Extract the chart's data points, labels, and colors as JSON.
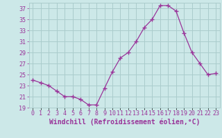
{
  "x": [
    0,
    1,
    2,
    3,
    4,
    5,
    6,
    7,
    8,
    9,
    10,
    11,
    12,
    13,
    14,
    15,
    16,
    17,
    18,
    19,
    20,
    21,
    22,
    23
  ],
  "y": [
    24.0,
    23.5,
    23.0,
    22.0,
    21.0,
    21.0,
    20.5,
    19.5,
    19.5,
    22.5,
    25.5,
    28.0,
    29.0,
    31.0,
    33.5,
    35.0,
    37.5,
    37.5,
    36.5,
    32.5,
    29.0,
    27.0,
    25.0,
    25.2
  ],
  "line_color": "#993399",
  "marker": "+",
  "marker_size": 4,
  "bg_color": "#cce8e8",
  "grid_color": "#aacccc",
  "xlabel": "Windchill (Refroidissement éolien,°C)",
  "xlabel_color": "#993399",
  "xlabel_fontsize": 7,
  "tick_color": "#993399",
  "tick_fontsize": 6,
  "ylim": [
    19,
    38
  ],
  "xlim": [
    -0.5,
    23.5
  ],
  "yticks": [
    19,
    21,
    23,
    25,
    27,
    29,
    31,
    33,
    35,
    37
  ],
  "xtick_labels": [
    "0",
    "1",
    "2",
    "3",
    "4",
    "5",
    "6",
    "7",
    "8",
    "9",
    "10",
    "11",
    "12",
    "13",
    "14",
    "15",
    "16",
    "17",
    "18",
    "19",
    "20",
    "21",
    "22",
    "23"
  ]
}
